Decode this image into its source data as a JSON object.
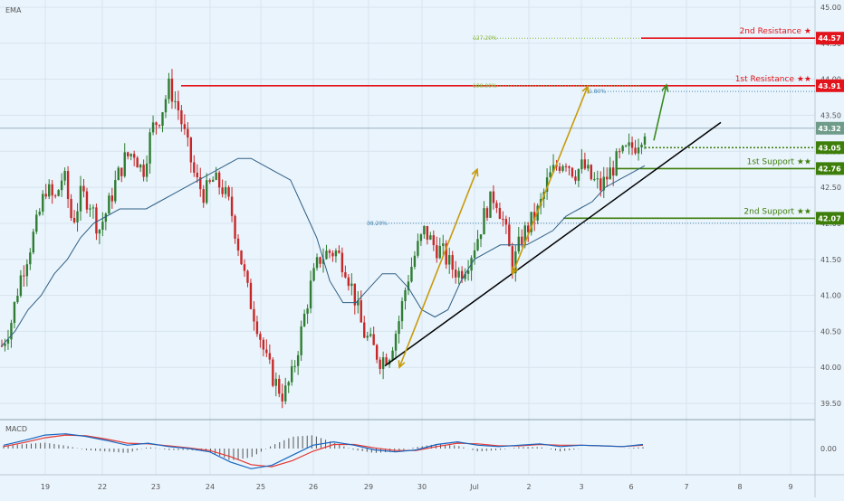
{
  "indicator_labels": {
    "ema": "EMA",
    "macd": "MACD"
  },
  "colors": {
    "background": "#eaf4fc",
    "grid": "#d6e4ef",
    "up": "#2e7d32",
    "down": "#c62828",
    "ema": "#2f5f85",
    "resistance": "#e3131b",
    "support": "#3d7d0a",
    "trendline": "#000000",
    "projection_up": "#c89b0a",
    "target_arrow": "#3a8a1f",
    "fib": "#8ab83c",
    "fib_blue": "#4a8ab5",
    "macd_line": "#1565c0",
    "signal_line": "#e53935",
    "histogram": "#555555",
    "axis_text": "#555555"
  },
  "price_axis": {
    "ticks": [
      "45.00",
      "44.50",
      "44.00",
      "43.50",
      "43.00",
      "42.50",
      "42.00",
      "41.50",
      "41.00",
      "40.50",
      "40.00",
      "39.50"
    ]
  },
  "macd_axis": {
    "ticks": [
      "0.00"
    ]
  },
  "time_axis": {
    "ticks": [
      "19",
      "22",
      "23",
      "24",
      "25",
      "26",
      "29",
      "30",
      "Jul",
      "2",
      "3",
      "6",
      "7",
      "8",
      "9"
    ]
  },
  "levels": [
    {
      "label": "2nd Resistance ★",
      "price": "44.57",
      "kind": "resistance"
    },
    {
      "label": "1st Resistance ★★",
      "price": "43.91",
      "kind": "resistance"
    },
    {
      "label": "",
      "price": "43.32",
      "kind": "current"
    },
    {
      "label": "",
      "price": "43.05",
      "kind": "pivot"
    },
    {
      "label": "1st Support ★★",
      "price": "42.76",
      "kind": "support"
    },
    {
      "label": "2nd Support ★★",
      "price": "42.07",
      "kind": "support"
    }
  ],
  "fib_labels": [
    {
      "text": "127.20%",
      "price": 44.57
    },
    {
      "text": "100.00%",
      "price": 43.91
    },
    {
      "text": "1.80%",
      "price": 43.83
    },
    {
      "text": "38.20%",
      "price": 42.0
    }
  ],
  "chart_data": {
    "type": "candlestick",
    "y_range": [
      39.3,
      45.1
    ],
    "macd_range": [
      -0.35,
      0.35
    ],
    "ema_period_label": "EMA",
    "close_path": [
      40.3,
      40.6,
      41.2,
      41.6,
      42.0,
      42.5,
      42.3,
      42.7,
      42.0,
      42.4,
      42.3,
      41.9,
      42.2,
      42.6,
      42.9,
      43.0,
      42.7,
      43.3,
      43.5,
      43.9,
      43.6,
      43.1,
      42.6,
      42.4,
      42.6,
      42.5,
      42.2,
      41.6,
      41.0,
      40.6,
      40.1,
      39.8,
      39.6,
      39.9,
      40.5,
      41.1,
      41.5,
      41.6,
      41.6,
      41.4,
      41.0,
      40.5,
      40.3,
      40.1,
      40.2,
      40.6,
      41.2,
      41.6,
      41.9,
      41.7,
      41.6,
      41.4,
      41.3,
      41.5,
      41.8,
      42.2,
      42.4,
      42.0,
      41.4,
      41.8,
      42.0,
      42.2,
      42.6,
      42.8,
      42.9,
      42.7,
      42.8,
      42.6,
      42.5,
      42.7,
      42.9,
      43.0,
      43.1,
      43.32
    ],
    "ema_path": [
      40.3,
      40.5,
      40.8,
      41.0,
      41.3,
      41.5,
      41.8,
      42.0,
      42.1,
      42.2,
      42.2,
      42.2,
      42.3,
      42.4,
      42.5,
      42.6,
      42.7,
      42.8,
      42.9,
      42.9,
      42.8,
      42.7,
      42.6,
      42.2,
      41.8,
      41.2,
      40.9,
      40.9,
      41.1,
      41.3,
      41.3,
      41.1,
      40.8,
      40.7,
      40.8,
      41.2,
      41.5,
      41.6,
      41.7,
      41.7,
      41.7,
      41.8,
      41.9,
      42.1,
      42.2,
      42.3,
      42.5,
      42.6,
      42.7,
      42.8
    ],
    "trendline": [
      [
        40.02,
        0
      ],
      [
        43.4,
        1
      ]
    ],
    "levels": [
      44.57,
      43.91,
      43.32,
      43.05,
      42.76,
      42.07
    ],
    "macd_line": [
      0.05,
      0.12,
      0.2,
      0.22,
      0.18,
      0.12,
      0.05,
      0.08,
      0.03,
      0.0,
      -0.05,
      -0.2,
      -0.3,
      -0.25,
      -0.1,
      0.05,
      0.1,
      0.05,
      -0.02,
      -0.05,
      -0.02,
      0.06,
      0.1,
      0.05,
      0.03,
      0.05,
      0.07,
      0.03,
      0.05,
      0.04,
      0.03,
      0.06
    ],
    "signal_line": [
      0.03,
      0.09,
      0.16,
      0.2,
      0.19,
      0.14,
      0.08,
      0.07,
      0.04,
      0.01,
      -0.03,
      -0.12,
      -0.24,
      -0.27,
      -0.18,
      -0.04,
      0.06,
      0.06,
      0.01,
      -0.03,
      -0.03,
      0.03,
      0.08,
      0.07,
      0.04,
      0.04,
      0.06,
      0.05,
      0.05,
      0.04,
      0.03,
      0.05
    ]
  }
}
